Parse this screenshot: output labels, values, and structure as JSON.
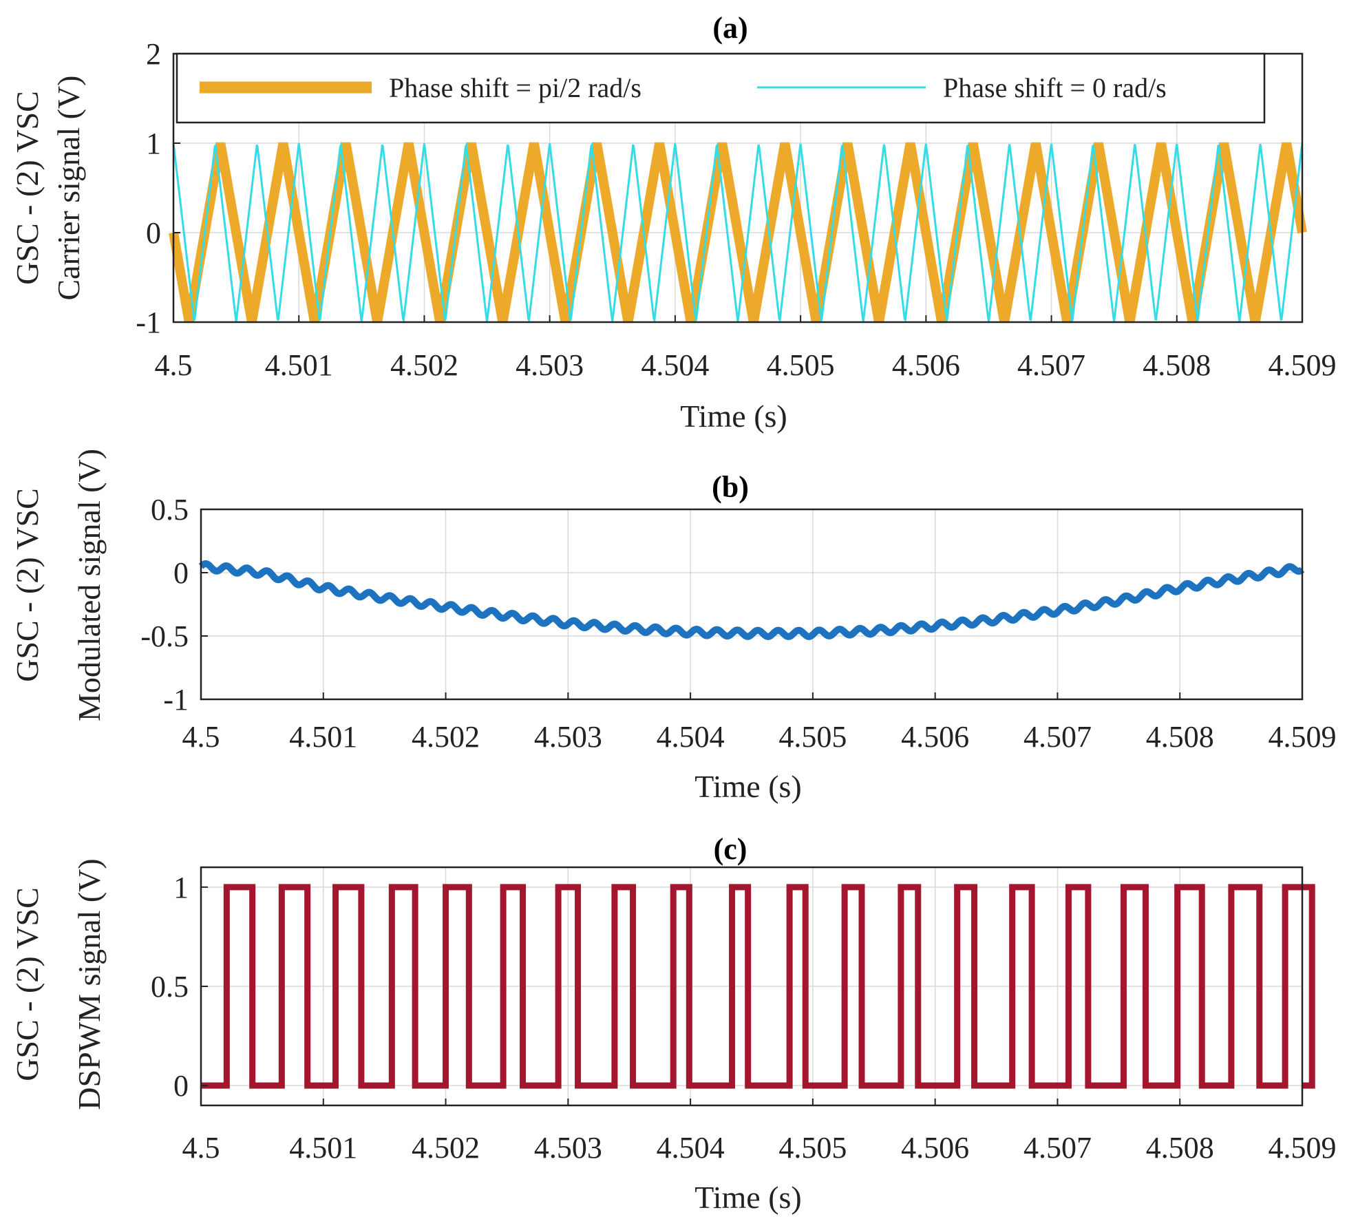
{
  "chart_data": [
    {
      "id": "a",
      "type": "line",
      "title": "(a)",
      "ylabel_line1": "GSC - (2) VSC",
      "ylabel_line2": "Carrier signal (V)",
      "xlabel": "Time (s)",
      "xlim": [
        4.5,
        4.509
      ],
      "ylim": [
        -1,
        2
      ],
      "xticks": [
        "4.5",
        "4.501",
        "4.502",
        "4.503",
        "4.504",
        "4.505",
        "4.506",
        "4.507",
        "4.508",
        "4.509"
      ],
      "yticks": [
        "2",
        "1",
        "0",
        "-1"
      ],
      "grid": true,
      "legend_position": "top",
      "legend_box": true,
      "series": [
        {
          "name": "Phase shift = pi/2 rad/s",
          "color": "#EDA92A",
          "waveform": "triangle",
          "amplitude": 1,
          "period_s": 0.0005,
          "phase_rad": 1.5708
        },
        {
          "name": "Phase shift = 0 rad/s",
          "color": "#34DCE5",
          "waveform": "triangle",
          "amplitude": 1,
          "period_s": 0.0003333,
          "phase_rad": 0
        }
      ]
    },
    {
      "id": "b",
      "type": "line",
      "title": "(b)",
      "ylabel_line1": "GSC - (2) VSC",
      "ylabel_line2": "Modulated signal (V)",
      "xlabel": "Time (s)",
      "xlim": [
        4.5,
        4.509
      ],
      "ylim": [
        -1,
        0.5
      ],
      "xticks": [
        "4.5",
        "4.501",
        "4.502",
        "4.503",
        "4.504",
        "4.505",
        "4.506",
        "4.507",
        "4.508",
        "4.509"
      ],
      "yticks": [
        "0.5",
        "0",
        "-0.5",
        "-1"
      ],
      "grid": true,
      "series": [
        {
          "color": "#1E73C0",
          "x": [
            4.5,
            4.5005,
            4.501,
            4.5015,
            4.502,
            4.5025,
            4.503,
            4.5035,
            4.504,
            4.5045,
            4.505,
            4.5055,
            4.506,
            4.5065,
            4.507,
            4.5075,
            4.508,
            4.5085,
            4.509
          ],
          "y": [
            0.05,
            0.0,
            -0.12,
            -0.2,
            -0.27,
            -0.34,
            -0.4,
            -0.44,
            -0.47,
            -0.48,
            -0.48,
            -0.46,
            -0.42,
            -0.37,
            -0.3,
            -0.22,
            -0.12,
            -0.04,
            0.04
          ],
          "ripple_amplitude": 0.025,
          "ripple_period_s": 0.000167
        }
      ]
    },
    {
      "id": "c",
      "type": "line",
      "title": "(c)",
      "ylabel_line1": "GSC - (2) VSC",
      "ylabel_line2": "DSPWM signal (V)",
      "xlabel": "Time (s)",
      "xlim": [
        4.5,
        4.509
      ],
      "ylim": [
        -0.1,
        1.1
      ],
      "xticks": [
        "4.5",
        "4.501",
        "4.502",
        "4.503",
        "4.504",
        "4.505",
        "4.506",
        "4.507",
        "4.508",
        "4.509"
      ],
      "yticks": [
        "1",
        "0.5",
        "0"
      ],
      "grid": true,
      "series": [
        {
          "color": "#A3162E",
          "waveform": "pwm",
          "high": 1,
          "low": 0,
          "pulses": [
            [
              4.50021,
              4.50042
            ],
            [
              4.50066,
              4.50087
            ],
            [
              4.5011,
              4.50131
            ],
            [
              4.50156,
              4.50175
            ],
            [
              4.502,
              4.50219
            ],
            [
              4.50247,
              4.50263
            ],
            [
              4.50292,
              4.50308
            ],
            [
              4.50338,
              4.50353
            ],
            [
              4.50386,
              4.50399
            ],
            [
              4.50434,
              4.50447
            ],
            [
              4.50481,
              4.50494
            ],
            [
              4.50526,
              4.5054
            ],
            [
              4.50572,
              4.50586
            ],
            [
              4.50618,
              4.50632
            ],
            [
              4.50663,
              4.50679
            ],
            [
              4.50709,
              4.50725
            ],
            [
              4.50754,
              4.50772
            ],
            [
              4.50798,
              4.50818
            ],
            [
              4.50842,
              4.50865
            ],
            [
              4.50886,
              4.50908
            ]
          ]
        }
      ]
    }
  ]
}
